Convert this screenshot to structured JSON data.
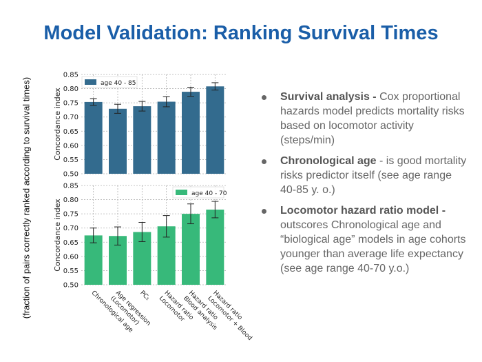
{
  "title": "Model Validation: Ranking Survival Times",
  "side_label": "(fraction of pairs correctly ranked according to survival times)",
  "colors": {
    "title": "#1a5ea8",
    "top_bars": "#336b8e",
    "bottom_bars": "#37b97a"
  },
  "chart_data": [
    {
      "type": "bar",
      "ylabel": "Concordance index",
      "ylim": [
        0.5,
        0.85
      ],
      "yticks": [
        "0.50",
        "0.55",
        "0.60",
        "0.65",
        "0.70",
        "0.75",
        "0.80",
        "0.85"
      ],
      "grid": true,
      "legend_position": "top-left",
      "categories": [
        "Chronological age",
        "Age regression (Locomotor)",
        "PC1",
        "Hazard ratio Locomotor",
        "Hazard ratio Blood analysis",
        "Hazard ratio Locomotor + Blood"
      ],
      "series": [
        {
          "name": "age 40 - 85",
          "values": [
            0.753,
            0.729,
            0.738,
            0.754,
            0.789,
            0.808
          ],
          "errors": [
            0.012,
            0.016,
            0.017,
            0.018,
            0.016,
            0.013
          ]
        }
      ]
    },
    {
      "type": "bar",
      "ylabel": "Concordance index",
      "ylim": [
        0.5,
        0.85
      ],
      "yticks": [
        "0.50",
        "0.55",
        "0.60",
        "0.65",
        "0.70",
        "0.75",
        "0.80",
        "0.85"
      ],
      "grid": true,
      "legend_position": "top-right",
      "categories": [
        "Chronological age",
        "Age regression (Locomotor)",
        "PC1",
        "Hazard ratio Locomotor",
        "Hazard ratio Blood analysis",
        "Hazard ratio Locomotor + Blood"
      ],
      "series": [
        {
          "name": "age 40 - 70",
          "values": [
            0.674,
            0.672,
            0.686,
            0.706,
            0.75,
            0.765
          ],
          "errors": [
            0.026,
            0.032,
            0.034,
            0.038,
            0.035,
            0.029
          ]
        }
      ]
    }
  ],
  "x_tick_labels": [
    [
      "Chronological age"
    ],
    [
      "Age regression",
      "(Locomotor)"
    ],
    [
      "PC₁"
    ],
    [
      "Hazard ratio",
      "Locomotor"
    ],
    [
      "Hazard ratio",
      "Blood analysis"
    ],
    [
      "Hazard ratio",
      "Locomotor + Blood"
    ]
  ],
  "bullets": [
    {
      "bold": "Survival analysis -",
      "text": " Cox proportional hazards model predicts mortality risks based on locomotor activity (steps/min)"
    },
    {
      "bold": "Chronological age",
      "text": " - is good mortality risks predictor itself (see age range 40-85 y. o.)"
    },
    {
      "bold": "Locomotor hazard ratio model -",
      "text": " outscores Chronological age and “biological age” models in age cohorts younger than average life expectancy (see age range 40-70 y.o.)"
    }
  ]
}
